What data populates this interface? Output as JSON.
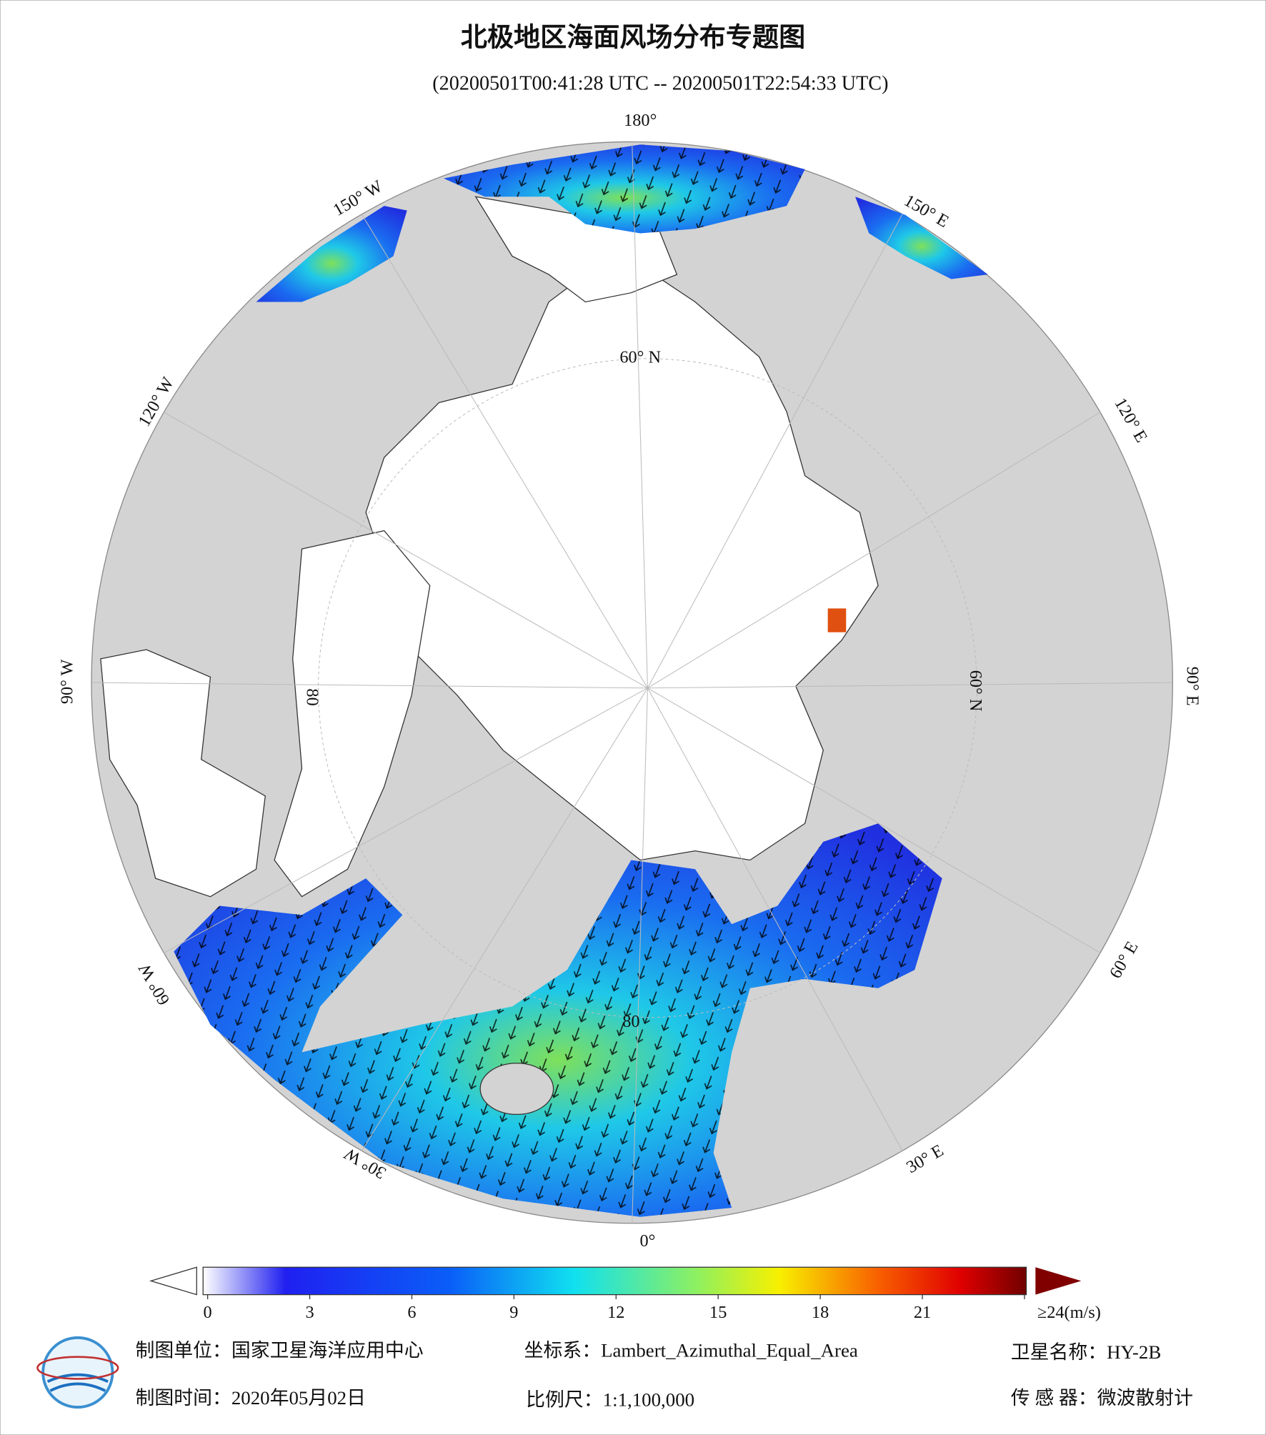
{
  "title": "北极地区海面风场分布专题图",
  "subtitle": "(20200501T00:41:28 UTC -- 20200501T22:54:33 UTC)",
  "map": {
    "lon_labels": [
      "180°",
      "150° W",
      "120° W",
      "90° W",
      "60° W",
      "30° W",
      "0°",
      "30° E",
      "60° E",
      "90° E",
      "120° E",
      "150° E"
    ],
    "lat_labels": [
      "60° N",
      "60° N",
      "80",
      "80"
    ]
  },
  "colorbar": {
    "range": [
      0,
      24
    ],
    "ticks": [
      0,
      3,
      6,
      9,
      12,
      15,
      18,
      21,
      {
        "value": 24,
        "label": "≥24(m/s)"
      }
    ]
  },
  "footer": {
    "unit": "制图单位：国家卫星海洋应用中心",
    "crs": "坐标系：Lambert_Azimuthal_Equal_Area",
    "satellite": "卫星名称：HY-2B",
    "date": "制图时间：2020年05月02日",
    "scale": "比例尺：1:1,100,000",
    "sensor": "传 感 器：微波散射计"
  }
}
